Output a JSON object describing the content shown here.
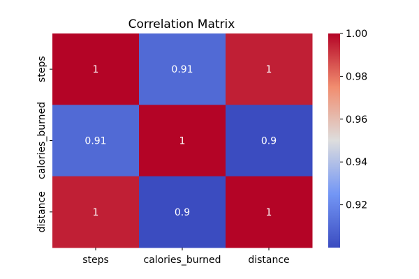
{
  "chart_data": {
    "type": "heatmap",
    "title": "Correlation Matrix",
    "rows": [
      "steps",
      "calories_burned",
      "distance"
    ],
    "columns": [
      "steps",
      "calories_burned",
      "distance"
    ],
    "values": [
      [
        1.0,
        0.91,
        0.995
      ],
      [
        0.91,
        1.0,
        0.9
      ],
      [
        0.995,
        0.9,
        1.0
      ]
    ],
    "annotations": [
      [
        "1",
        "0.91",
        "1"
      ],
      [
        "0.91",
        "1",
        "0.9"
      ],
      [
        "1",
        "0.9",
        "1"
      ]
    ],
    "colormap": "coolwarm",
    "colorbar": {
      "range": [
        0.9,
        1.0
      ],
      "ticks": [
        0.92,
        0.94,
        0.96,
        0.98,
        1.0
      ],
      "tick_labels": [
        "0.92",
        "0.94",
        "0.96",
        "0.98",
        "1.00"
      ]
    }
  }
}
